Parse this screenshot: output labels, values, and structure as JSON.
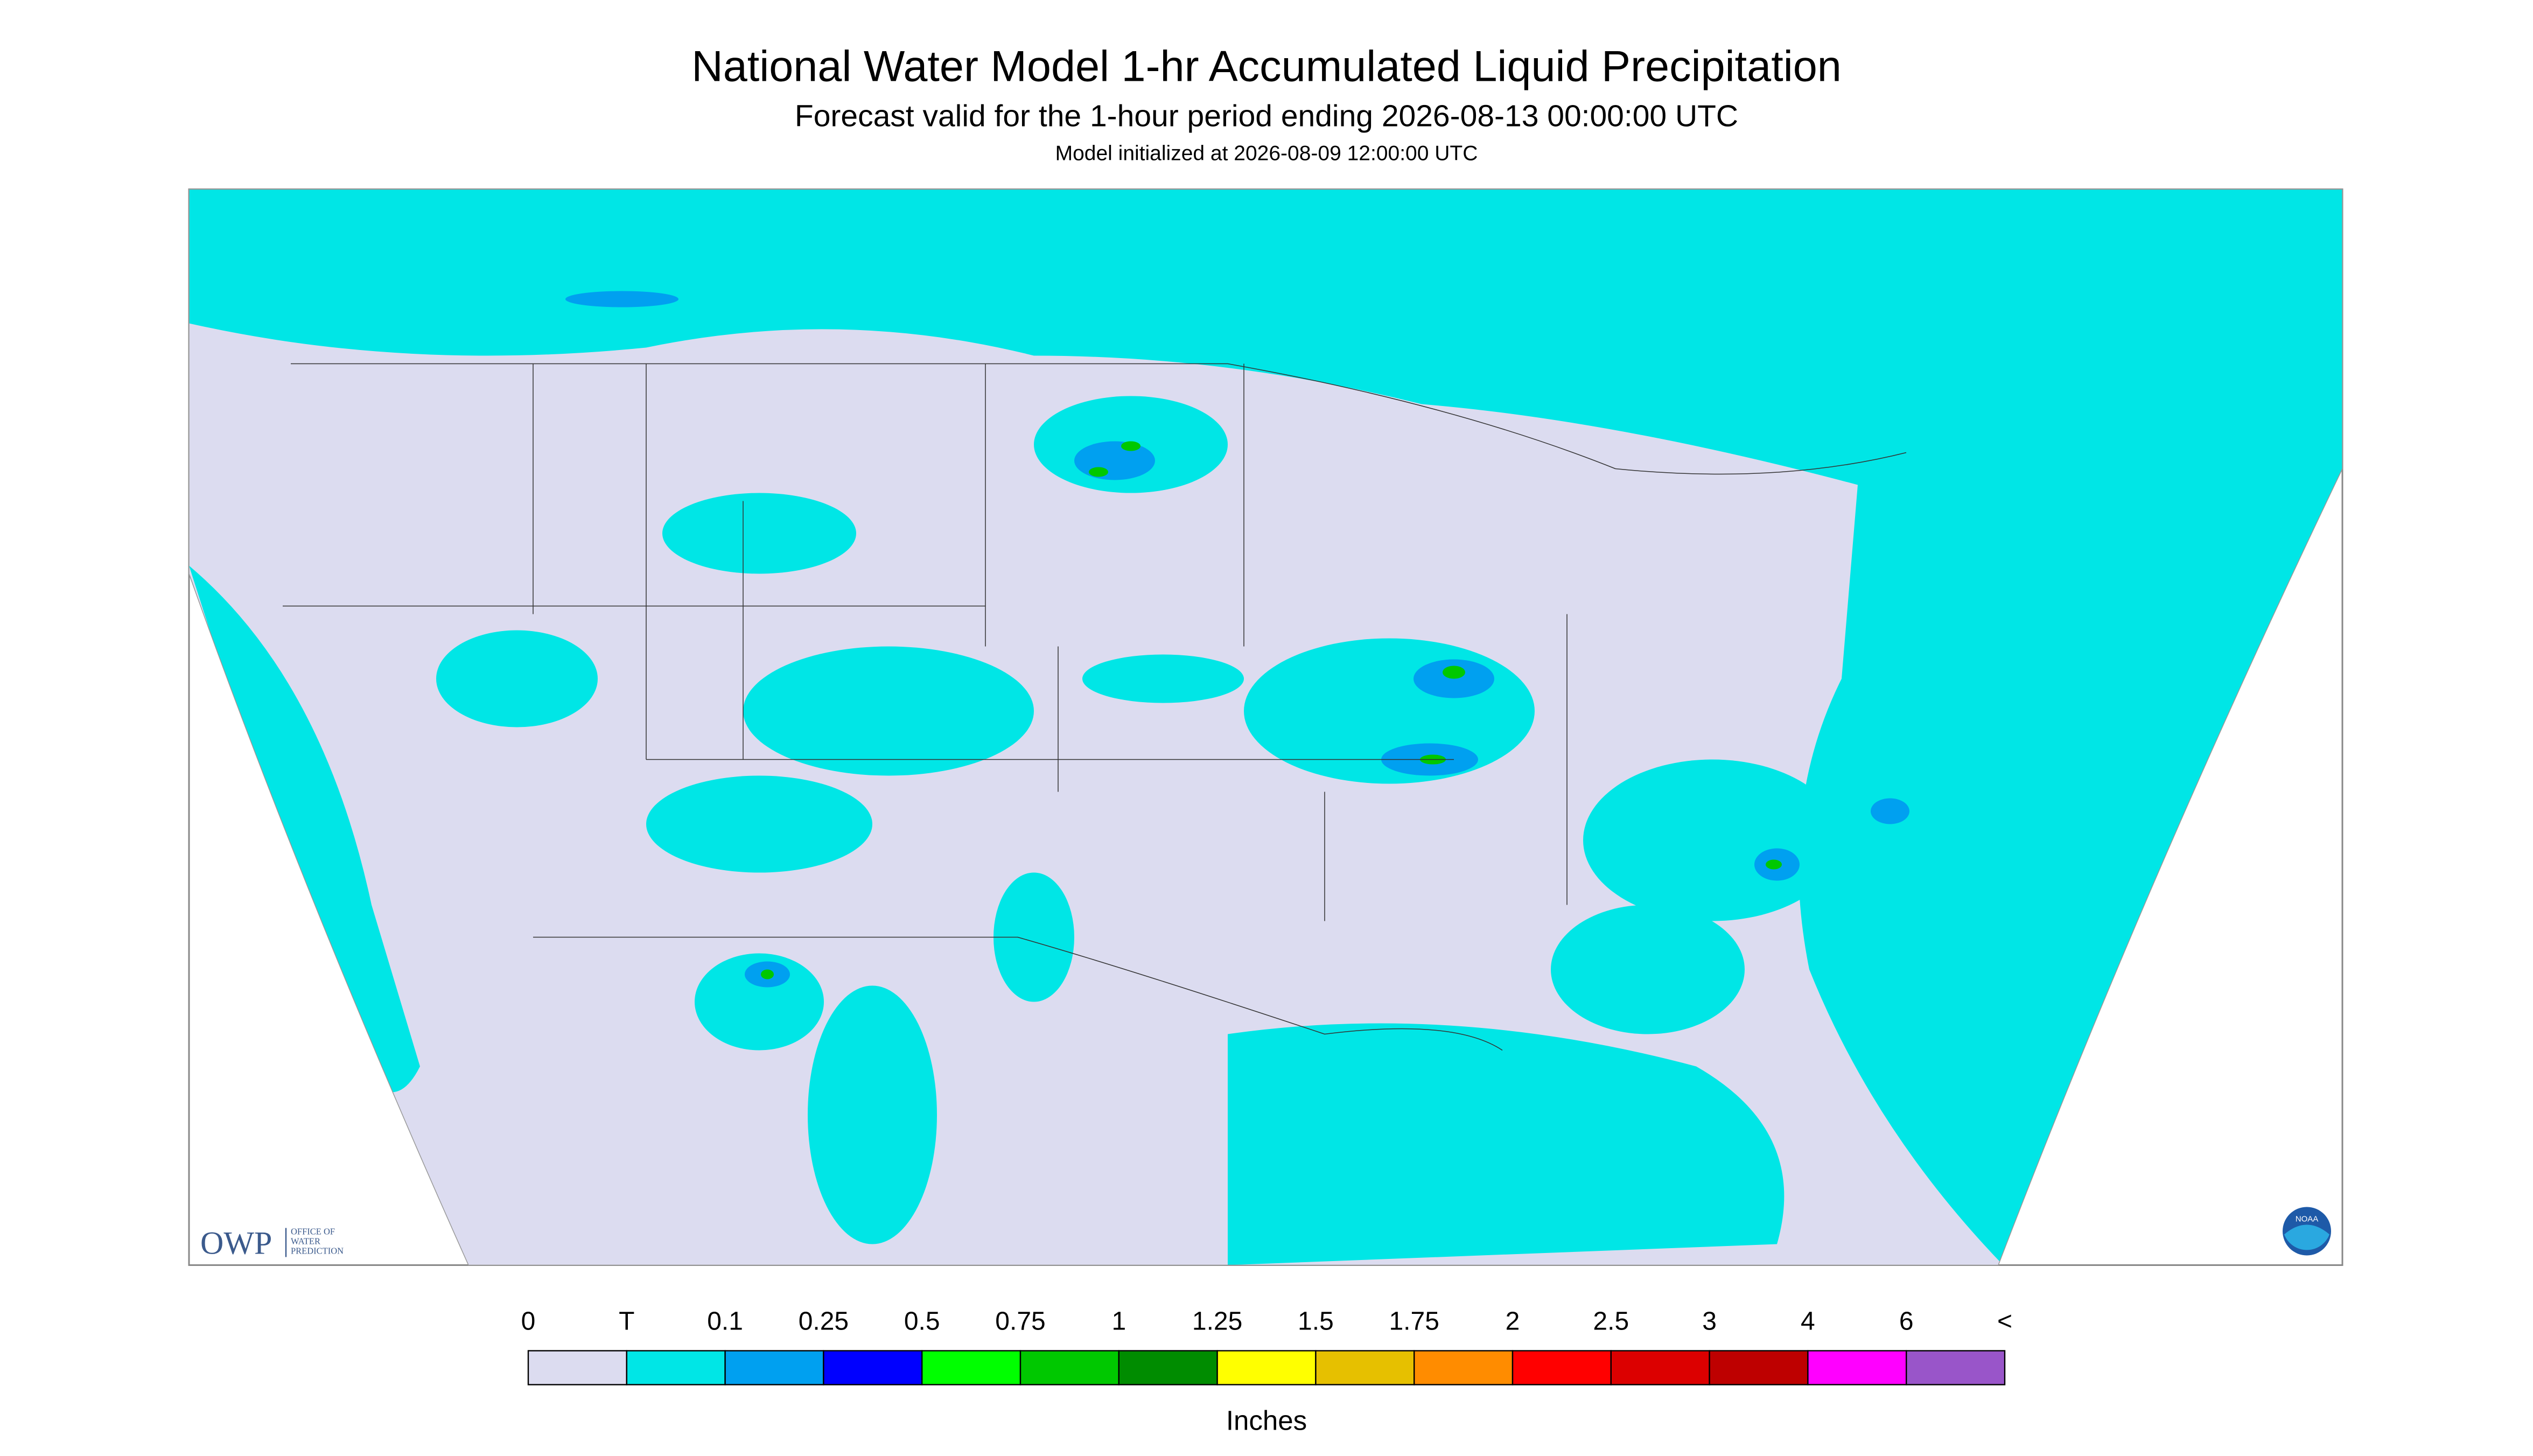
{
  "header": {
    "title": "National Water Model 1-hr Accumulated Liquid Precipitation",
    "subtitle": "Forecast valid for the 1-hour period ending 2026-08-13 00:00:00 UTC",
    "init": "Model initialized at 2026-08-09 12:00:00 UTC"
  },
  "logo": {
    "owp": "OWP",
    "office": [
      "OFFICE OF",
      "WATER",
      "PREDICTION"
    ],
    "noaa": "NOAA"
  },
  "legend": {
    "labels": [
      "0",
      "T",
      "0.1",
      "0.25",
      "0.5",
      "0.75",
      "1",
      "1.25",
      "1.5",
      "1.75",
      "2",
      "2.5",
      "3",
      "4",
      "6",
      "<"
    ],
    "colors": [
      "#dcdcf0",
      "#00e6e6",
      "#00a0f0",
      "#0000ff",
      "#00ff00",
      "#00c800",
      "#008c00",
      "#ffff00",
      "#e6c000",
      "#ff8c00",
      "#ff0000",
      "#dc0000",
      "#be0000",
      "#ff00ff",
      "#9955c9"
    ],
    "unit": "Inches"
  }
}
